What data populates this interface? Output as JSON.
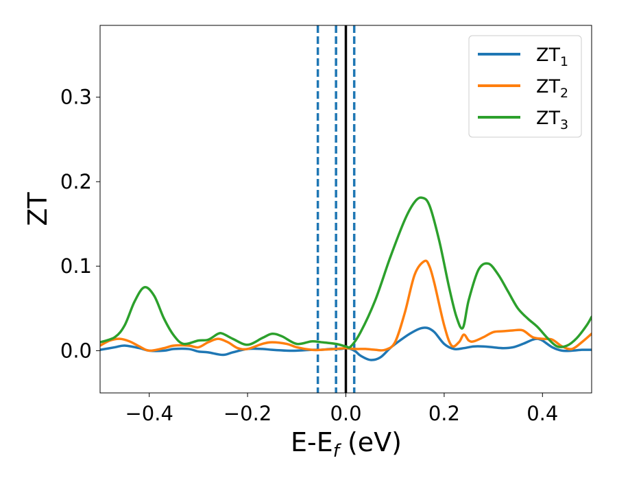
{
  "chart_data": {
    "type": "line",
    "title": "",
    "xlabel": "E-E",
    "xlabel_sub": "f",
    "xlabel_unit": " (eV)",
    "ylabel": "ZT",
    "xlim": [
      -0.5,
      0.5
    ],
    "ylim": [
      -0.05,
      0.385
    ],
    "x_ticks": [
      -0.4,
      -0.2,
      0.0,
      0.2,
      0.4
    ],
    "x_tick_labels": [
      "−0.4",
      "−0.2",
      "0.0",
      "0.2",
      "0.4"
    ],
    "y_ticks": [
      0.0,
      0.1,
      0.2,
      0.3
    ],
    "y_tick_labels": [
      "0.0",
      "0.1",
      "0.2",
      "0.3"
    ],
    "grid": false,
    "legend_position": "top-right",
    "vertical_lines": [
      {
        "x": -0.057,
        "color": "#1f77b4",
        "style": "dashed"
      },
      {
        "x": -0.02,
        "color": "#1f77b4",
        "style": "dashed"
      },
      {
        "x": 0.017,
        "color": "#1f77b4",
        "style": "dashed"
      },
      {
        "x": 0.0,
        "color": "#000000",
        "style": "solid"
      }
    ],
    "series": [
      {
        "name": "ZT",
        "sub": "1",
        "color": "#1f77b4",
        "x": [
          -0.5,
          -0.47,
          -0.45,
          -0.42,
          -0.4,
          -0.37,
          -0.35,
          -0.32,
          -0.3,
          -0.28,
          -0.25,
          -0.23,
          -0.2,
          -0.17,
          -0.15,
          -0.12,
          -0.1,
          -0.07,
          -0.05,
          -0.03,
          -0.01,
          0.0,
          0.01,
          0.02,
          0.03,
          0.05,
          0.07,
          0.09,
          0.11,
          0.13,
          0.15,
          0.165,
          0.18,
          0.2,
          0.22,
          0.24,
          0.26,
          0.28,
          0.3,
          0.32,
          0.34,
          0.36,
          0.38,
          0.39,
          0.4,
          0.42,
          0.44,
          0.46,
          0.48,
          0.5
        ],
        "y": [
          0.001,
          0.004,
          0.006,
          0.003,
          0.0,
          0.0,
          0.002,
          0.002,
          -0.001,
          -0.002,
          -0.005,
          -0.002,
          0.002,
          0.002,
          0.001,
          0.0,
          0.0,
          0.001,
          0.001,
          0.002,
          0.002,
          0.003,
          0.002,
          -0.001,
          -0.006,
          -0.011,
          -0.008,
          0.003,
          0.012,
          0.02,
          0.026,
          0.027,
          0.022,
          0.008,
          0.002,
          0.003,
          0.005,
          0.005,
          0.004,
          0.003,
          0.004,
          0.008,
          0.013,
          0.014,
          0.012,
          0.004,
          0.0,
          0.0,
          0.001,
          0.001
        ]
      },
      {
        "name": "ZT",
        "sub": "2",
        "color": "#ff7f0e",
        "x": [
          -0.5,
          -0.48,
          -0.46,
          -0.44,
          -0.42,
          -0.4,
          -0.37,
          -0.35,
          -0.32,
          -0.3,
          -0.28,
          -0.26,
          -0.24,
          -0.22,
          -0.2,
          -0.17,
          -0.15,
          -0.12,
          -0.1,
          -0.07,
          -0.05,
          -0.02,
          0.0,
          0.02,
          0.04,
          0.06,
          0.08,
          0.1,
          0.12,
          0.14,
          0.16,
          0.17,
          0.18,
          0.2,
          0.215,
          0.23,
          0.24,
          0.25,
          0.26,
          0.28,
          0.3,
          0.32,
          0.34,
          0.36,
          0.38,
          0.4,
          0.42,
          0.44,
          0.46,
          0.48,
          0.5
        ],
        "y": [
          0.006,
          0.012,
          0.014,
          0.011,
          0.005,
          0.0,
          0.003,
          0.006,
          0.006,
          0.004,
          0.01,
          0.014,
          0.01,
          0.003,
          0.002,
          0.008,
          0.01,
          0.008,
          0.004,
          0.001,
          0.001,
          0.002,
          0.003,
          0.002,
          0.002,
          0.001,
          0.001,
          0.01,
          0.045,
          0.09,
          0.106,
          0.1,
          0.08,
          0.03,
          0.006,
          0.01,
          0.019,
          0.012,
          0.011,
          0.016,
          0.022,
          0.023,
          0.024,
          0.024,
          0.016,
          0.014,
          0.013,
          0.005,
          0.002,
          0.01,
          0.02
        ]
      },
      {
        "name": "ZT",
        "sub": "3",
        "color": "#2ca02c",
        "x": [
          -0.5,
          -0.47,
          -0.45,
          -0.43,
          -0.41,
          -0.39,
          -0.37,
          -0.35,
          -0.33,
          -0.3,
          -0.28,
          -0.26,
          -0.25,
          -0.23,
          -0.2,
          -0.17,
          -0.15,
          -0.13,
          -0.1,
          -0.07,
          -0.05,
          -0.02,
          0.0,
          0.01,
          0.03,
          0.06,
          0.09,
          0.12,
          0.14,
          0.155,
          0.17,
          0.19,
          0.21,
          0.225,
          0.238,
          0.25,
          0.27,
          0.29,
          0.31,
          0.33,
          0.35,
          0.37,
          0.39,
          0.41,
          0.43,
          0.45,
          0.47,
          0.49,
          0.5
        ],
        "y": [
          0.01,
          0.016,
          0.03,
          0.058,
          0.075,
          0.065,
          0.038,
          0.018,
          0.008,
          0.012,
          0.013,
          0.02,
          0.02,
          0.014,
          0.007,
          0.015,
          0.02,
          0.017,
          0.008,
          0.011,
          0.01,
          0.008,
          0.005,
          0.005,
          0.022,
          0.06,
          0.11,
          0.155,
          0.176,
          0.181,
          0.172,
          0.13,
          0.075,
          0.04,
          0.027,
          0.06,
          0.096,
          0.103,
          0.09,
          0.07,
          0.05,
          0.038,
          0.028,
          0.015,
          0.005,
          0.006,
          0.015,
          0.03,
          0.04
        ]
      }
    ]
  }
}
